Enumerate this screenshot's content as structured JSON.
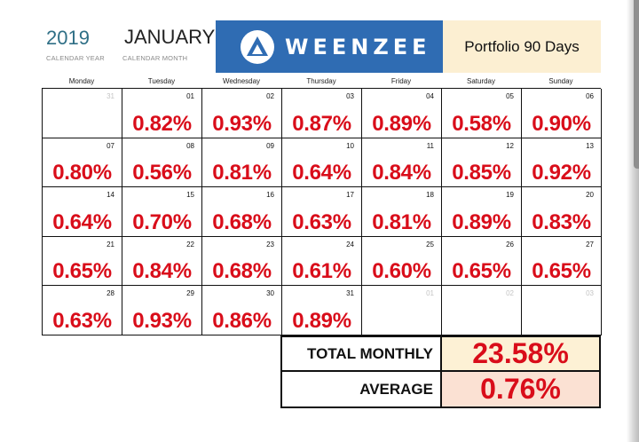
{
  "header": {
    "year": "2019",
    "year_caption": "CALENDAR YEAR",
    "month": "JANUARY",
    "month_caption": "CALENDAR MONTH",
    "brand": "WEENZEE",
    "portfolio_title": "Portfolio 90 Days"
  },
  "weekdays": [
    "Monday",
    "Tuesday",
    "Wednesday",
    "Thursday",
    "Friday",
    "Saturday",
    "Sunday"
  ],
  "weeks": [
    [
      {
        "day": "31",
        "muted": true,
        "value": ""
      },
      {
        "day": "01",
        "value": "0.82%"
      },
      {
        "day": "02",
        "value": "0.93%"
      },
      {
        "day": "03",
        "value": "0.87%"
      },
      {
        "day": "04",
        "value": "0.89%"
      },
      {
        "day": "05",
        "value": "0.58%"
      },
      {
        "day": "06",
        "value": "0.90%"
      }
    ],
    [
      {
        "day": "07",
        "value": "0.80%"
      },
      {
        "day": "08",
        "value": "0.56%"
      },
      {
        "day": "09",
        "value": "0.81%"
      },
      {
        "day": "10",
        "value": "0.64%"
      },
      {
        "day": "11",
        "value": "0.84%"
      },
      {
        "day": "12",
        "value": "0.85%"
      },
      {
        "day": "13",
        "value": "0.92%"
      }
    ],
    [
      {
        "day": "14",
        "value": "0.64%"
      },
      {
        "day": "15",
        "value": "0.70%"
      },
      {
        "day": "16",
        "value": "0.68%"
      },
      {
        "day": "17",
        "value": "0.63%"
      },
      {
        "day": "18",
        "value": "0.81%"
      },
      {
        "day": "19",
        "value": "0.89%"
      },
      {
        "day": "20",
        "value": "0.83%"
      }
    ],
    [
      {
        "day": "21",
        "value": "0.65%"
      },
      {
        "day": "22",
        "value": "0.84%"
      },
      {
        "day": "23",
        "value": "0.68%"
      },
      {
        "day": "24",
        "value": "0.61%"
      },
      {
        "day": "25",
        "value": "0.60%"
      },
      {
        "day": "26",
        "value": "0.65%"
      },
      {
        "day": "27",
        "value": "0.65%"
      }
    ],
    [
      {
        "day": "28",
        "value": "0.63%"
      },
      {
        "day": "29",
        "value": "0.93%"
      },
      {
        "day": "30",
        "value": "0.86%"
      },
      {
        "day": "31",
        "value": "0.89%"
      },
      {
        "day": "01",
        "muted": true,
        "value": ""
      },
      {
        "day": "02",
        "muted": true,
        "value": ""
      },
      {
        "day": "03",
        "muted": true,
        "value": ""
      }
    ]
  ],
  "summary": {
    "total_label": "TOTAL MONTHLY",
    "total_value": "23.58%",
    "average_label": "AVERAGE",
    "average_value": "0.76%"
  },
  "colors": {
    "value_red": "#d90d1a",
    "brand_blue": "#2f6cb3",
    "year_teal": "#2f6f86",
    "portfolio_bg": "#fcefd2",
    "total_bg": "#fdf1d5",
    "average_bg": "#fbe1d3",
    "muted_day": "#c4c4c4"
  },
  "icons": {
    "logo": "weenzee-logo-icon"
  }
}
